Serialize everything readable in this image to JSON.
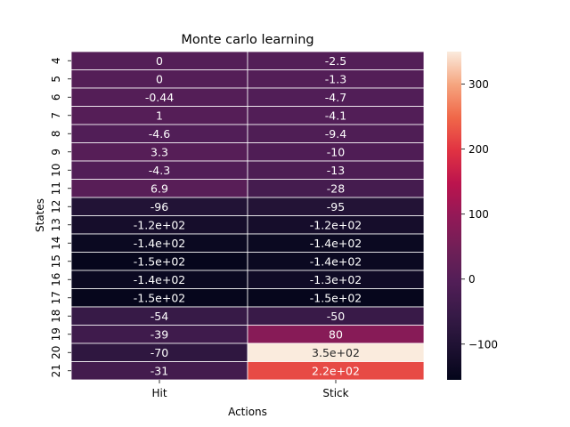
{
  "chart_data": {
    "type": "heatmap",
    "title": "Monte carlo learning",
    "xlabel": "Actions",
    "ylabel": "States",
    "columns": [
      "Hit",
      "Stick"
    ],
    "rows": [
      "4",
      "5",
      "6",
      "7",
      "8",
      "9",
      "10",
      "11",
      "12",
      "13",
      "14",
      "15",
      "16",
      "17",
      "18",
      "19",
      "20",
      "21"
    ],
    "values": [
      [
        0,
        -2.5
      ],
      [
        0,
        -1.3
      ],
      [
        -0.44,
        -4.7
      ],
      [
        1,
        -4.1
      ],
      [
        -4.6,
        -9.4
      ],
      [
        3.3,
        -10
      ],
      [
        -4.3,
        -13
      ],
      [
        6.9,
        -28
      ],
      [
        -96,
        -95
      ],
      [
        -120,
        -120
      ],
      [
        -140,
        -140
      ],
      [
        -150,
        -140
      ],
      [
        -140,
        -130
      ],
      [
        -150,
        -150
      ],
      [
        -54,
        -50
      ],
      [
        -39,
        80
      ],
      [
        -70,
        350
      ],
      [
        -31,
        220
      ]
    ],
    "annotations": [
      [
        "0",
        "-2.5"
      ],
      [
        "0",
        "-1.3"
      ],
      [
        "-0.44",
        "-4.7"
      ],
      [
        "1",
        "-4.1"
      ],
      [
        "-4.6",
        "-9.4"
      ],
      [
        "3.3",
        "-10"
      ],
      [
        "-4.3",
        "-13"
      ],
      [
        "6.9",
        "-28"
      ],
      [
        "-96",
        "-95"
      ],
      [
        "-1.2e+02",
        "-1.2e+02"
      ],
      [
        "-1.4e+02",
        "-1.4e+02"
      ],
      [
        "-1.5e+02",
        "-1.4e+02"
      ],
      [
        "-1.4e+02",
        "-1.3e+02"
      ],
      [
        "-1.5e+02",
        "-1.5e+02"
      ],
      [
        "-54",
        "-50"
      ],
      [
        "-39",
        "80"
      ],
      [
        "-70",
        "3.5e+02"
      ],
      [
        "-31",
        "2.2e+02"
      ]
    ],
    "colorbar": {
      "colormap": "rocket",
      "range": [
        -155,
        350
      ],
      "ticks": [
        -100,
        0,
        100,
        200,
        300
      ],
      "tick_labels": [
        "−100",
        "0",
        "100",
        "200",
        "300"
      ]
    },
    "grid": false,
    "legend": "none"
  }
}
